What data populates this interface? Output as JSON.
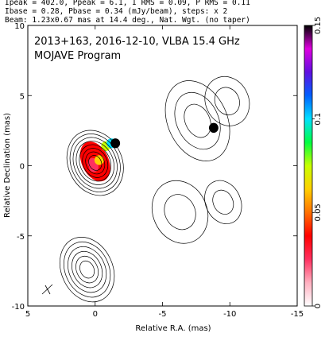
{
  "header": {
    "line1": "Ipeak = 402.0, Ppeak = 6.1, I RMS = 0.09, P RMS = 0.11",
    "line2": "Ibase = 0.28, Pbase = 0.34 (mJy/beam), steps: x 2",
    "line3": "Beam: 1.23x0.67 mas at 14.4 deg., Nat. Wgt. (no taper)"
  },
  "chart_data": {
    "type": "heatmap",
    "annotation_line1": "2013+163, 2016-12-10, VLBA 15.4 GHz",
    "annotation_line2": "MOJAVE Program",
    "xlabel": "Relative R.A. (mas)",
    "ylabel": "Relative Declination (mas)",
    "xlim": [
      5,
      -15
    ],
    "ylim": [
      -10,
      10
    ],
    "x_ticks": [
      5,
      0,
      -5,
      -10,
      -15
    ],
    "y_ticks": [
      10,
      5,
      0,
      -5,
      -10
    ],
    "colorbar": {
      "range": [
        0,
        0.15
      ],
      "ticks": [
        0,
        0.05,
        0.1,
        0.15
      ],
      "colors": [
        "#ffffff",
        "#ffb0c0",
        "#ff3060",
        "#ff0000",
        "#ff7000",
        "#ffd000",
        "#c8ff00",
        "#00ff40",
        "#00e0ff",
        "#0060ff",
        "#6010e0",
        "#e000e0",
        "#000000"
      ]
    },
    "core": {
      "x": 0.0,
      "y": 0.3
    },
    "polarization_patches": [
      {
        "x": 0.2,
        "y": 0.2,
        "value": 0.02
      },
      {
        "x": 0.1,
        "y": -0.1,
        "value": 0.03
      },
      {
        "x": -0.3,
        "y": 0.4,
        "value": 0.06
      },
      {
        "x": -0.8,
        "y": 1.4,
        "value": 0.08
      },
      {
        "x": -1.2,
        "y": 1.6,
        "value": 0.1
      },
      {
        "x": -1.5,
        "y": 1.6,
        "value": 0.15
      },
      {
        "x": -8.8,
        "y": 2.7,
        "value": 0.15
      }
    ],
    "contour_groups": [
      {
        "name": "core",
        "x": 0.0,
        "y": 0.2,
        "rx": 2.0,
        "ry": 2.4,
        "levels": 8
      },
      {
        "name": "lower-component",
        "x": 0.6,
        "y": -7.4,
        "rx": 1.9,
        "ry": 2.4,
        "levels": 6
      },
      {
        "name": "jet-upper",
        "x": -7.6,
        "y": 3.2,
        "rx": 2.2,
        "ry": 3.0,
        "levels": 3
      },
      {
        "name": "jet-upper-far",
        "x": -9.8,
        "y": 4.6,
        "rx": 1.6,
        "ry": 1.8,
        "levels": 2
      },
      {
        "name": "jet-lower",
        "x": -6.3,
        "y": -3.3,
        "rx": 2.0,
        "ry": 2.3,
        "levels": 2
      },
      {
        "name": "jet-lower-far",
        "x": -9.5,
        "y": -2.6,
        "rx": 1.3,
        "ry": 1.6,
        "levels": 2
      }
    ]
  }
}
